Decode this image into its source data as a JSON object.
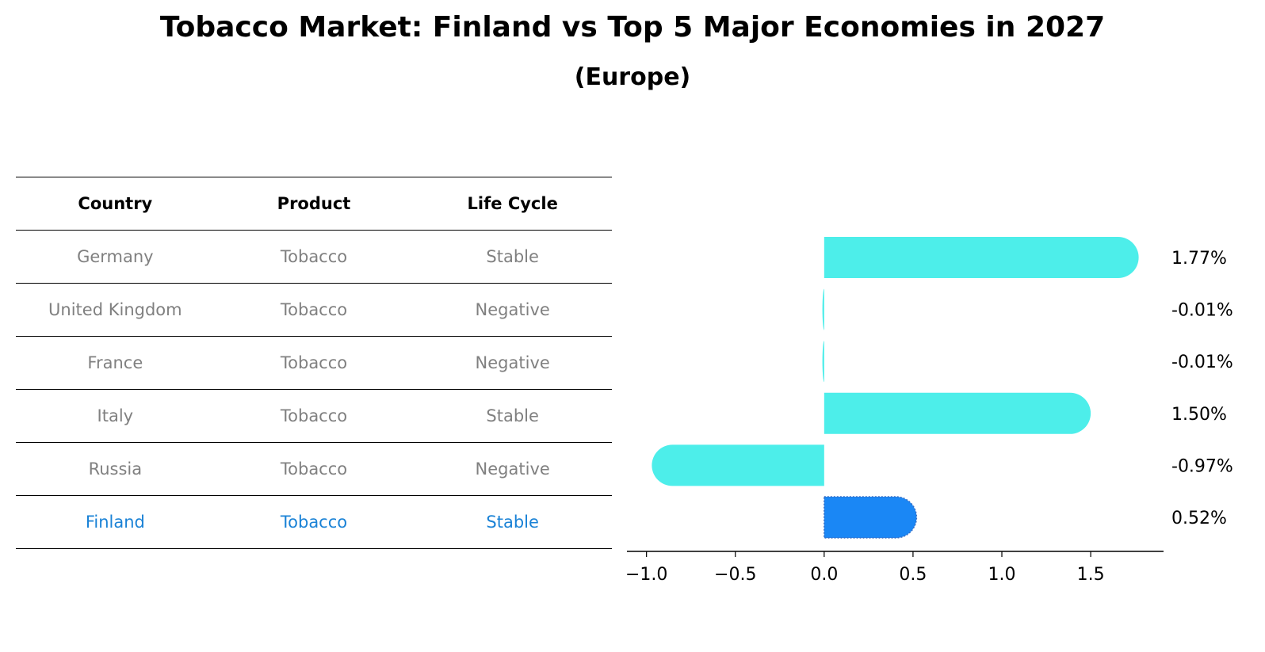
{
  "title": "Tobacco Market: Finland vs Top 5 Major Economies in 2027",
  "subtitle": "(Europe)",
  "table": {
    "headers": [
      "Country",
      "Product",
      "Life Cycle"
    ],
    "rows": [
      [
        "Germany",
        "Tobacco",
        "Stable"
      ],
      [
        "United Kingdom",
        "Tobacco",
        "Negative"
      ],
      [
        "France",
        "Tobacco",
        "Negative"
      ],
      [
        "Italy",
        "Tobacco",
        "Stable"
      ],
      [
        "Russia",
        "Tobacco",
        "Negative"
      ],
      [
        "Finland",
        "Tobacco",
        "Stable"
      ]
    ],
    "highlight_row": 5,
    "highlight_color": "#1a82d6",
    "text_color": "#808080"
  },
  "chart_data": {
    "type": "bar",
    "orientation": "horizontal",
    "categories": [
      "Germany",
      "United Kingdom",
      "France",
      "Italy",
      "Russia",
      "Finland"
    ],
    "values": [
      1.77,
      -0.01,
      -0.01,
      1.5,
      -0.97,
      0.52
    ],
    "value_labels": [
      "1.77%",
      "-0.01%",
      "-0.01%",
      "1.50%",
      "-0.97%",
      "0.52%"
    ],
    "xticks": [
      -1.0,
      -0.5,
      0.0,
      0.5,
      1.0,
      1.5
    ],
    "xtick_labels": [
      "−1.0",
      "−0.5",
      "0.0",
      "0.5",
      "1.0",
      "1.5"
    ],
    "xlim": [
      -1.11,
      1.91
    ],
    "bar_color": "#4deeea",
    "highlight_color": "#1a87f5",
    "highlight_index": 5,
    "grid": false
  }
}
